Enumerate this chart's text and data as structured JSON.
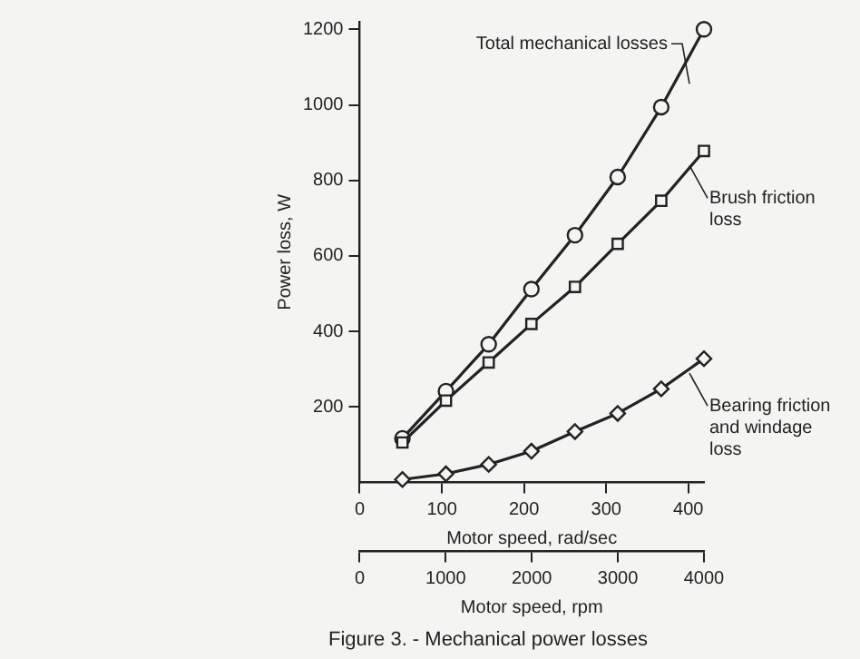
{
  "chart_data": {
    "type": "line",
    "title": "Figure 3. - Mechanical power losses",
    "xlabel": "Motor speed, rad/sec",
    "x2label": "Motor speed, rpm",
    "ylabel": "Power loss, W",
    "x": [
      52,
      105,
      157,
      209,
      262,
      314,
      367,
      419
    ],
    "series": [
      {
        "name": "Total mechanical losses",
        "color": "#222222",
        "marker": "circle",
        "values": [
          117,
          242,
          366,
          512,
          655,
          809,
          994,
          1200
        ]
      },
      {
        "name": "Brush friction loss",
        "color": "#222222",
        "marker": "square",
        "values": [
          106,
          217,
          318,
          420,
          518,
          632,
          746,
          878
        ]
      },
      {
        "name": "Bearing friction and windage loss",
        "color": "#222222",
        "marker": "diamond",
        "values": [
          8,
          23,
          48,
          83,
          135,
          183,
          248,
          328
        ]
      }
    ],
    "xlim": [
      0,
      419
    ],
    "xticks": [
      0,
      100,
      200,
      300,
      400
    ],
    "x2lim": [
      0,
      4000
    ],
    "x2ticks": [
      0,
      1000,
      2000,
      3000,
      4000
    ],
    "ylim": [
      0,
      1220
    ],
    "yticks": [
      200,
      400,
      600,
      800,
      1000,
      1200
    ],
    "grid": false,
    "legend": false,
    "line_style": "solid"
  }
}
